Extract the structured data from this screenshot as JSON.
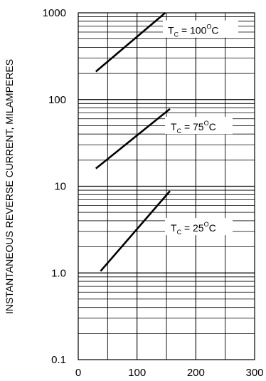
{
  "chart_data": {
    "type": "line",
    "title": "",
    "xlabel": "",
    "ylabel": "INSTANTANEOUS REVERSE CURRENT, MILAMPERES",
    "x_ticks": [
      "0",
      "100",
      "200",
      "300"
    ],
    "y_ticks": [
      "0.1",
      "1.0",
      "10",
      "100",
      "1000"
    ],
    "xlim": [
      0,
      300
    ],
    "ylim": [
      0.1,
      1000
    ],
    "y_scale": "log",
    "grid": true,
    "series": [
      {
        "name": "Tc = 100°C",
        "label_main": "T",
        "label_sub": "C",
        "label_value": " = 100",
        "label_sup": "O",
        "label_unit": "C",
        "x": [
          30,
          148
        ],
        "y": [
          210,
          1000
        ]
      },
      {
        "name": "Tc = 75°C",
        "label_main": "T",
        "label_sub": "C",
        "label_value": " = 75",
        "label_sup": "O",
        "label_unit": "C",
        "x": [
          30,
          156
        ],
        "y": [
          16,
          78
        ]
      },
      {
        "name": "Tc = 25°C",
        "label_main": "T",
        "label_sub": "C",
        "label_value": " = 25",
        "label_sup": "O",
        "label_unit": "C",
        "x": [
          38,
          156
        ],
        "y": [
          1.05,
          8.8
        ]
      }
    ],
    "colors": {
      "line": "#000000",
      "grid": "#000000",
      "background": "#ffffff"
    }
  }
}
